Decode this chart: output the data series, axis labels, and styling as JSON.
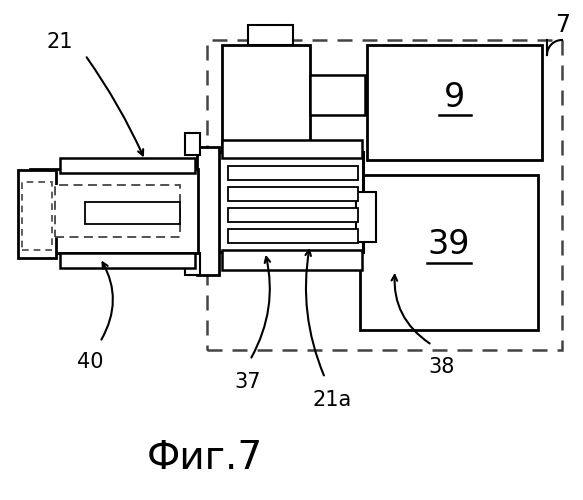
{
  "title": "Фиг.7",
  "label_7": "7",
  "label_21": "21",
  "label_21a": "21a",
  "label_40": "40",
  "label_37": "37",
  "label_38": "38",
  "label_9": "9",
  "label_39": "39",
  "bg_color": "#ffffff",
  "line_color": "#000000",
  "dash_color": "#444444"
}
